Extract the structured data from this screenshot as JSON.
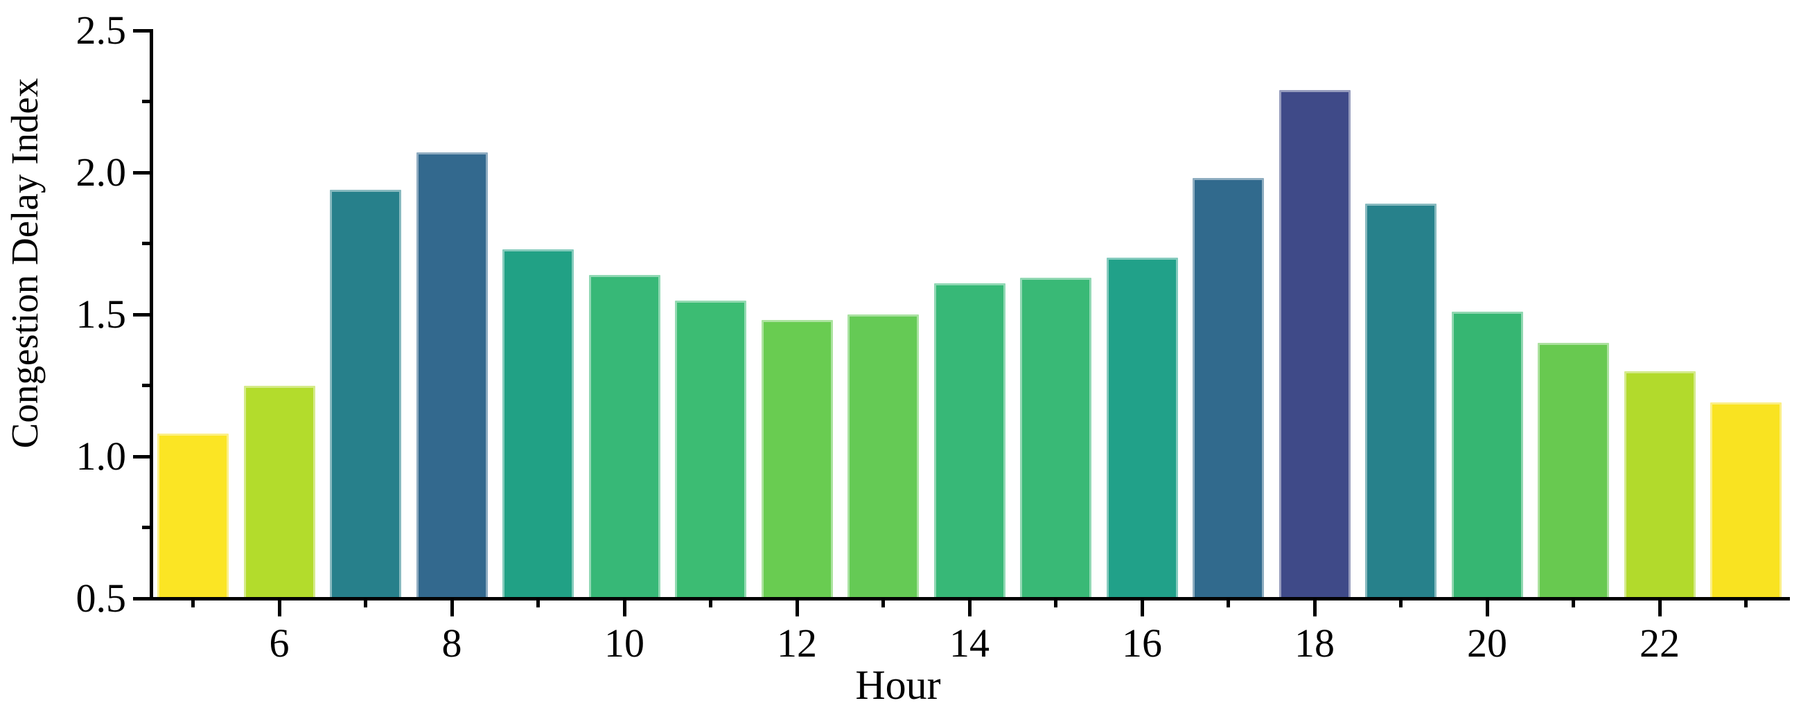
{
  "chart_data": {
    "type": "bar",
    "title": "",
    "xlabel": "Hour",
    "ylabel": "Congestion Delay Index",
    "x": [
      5,
      6,
      7,
      8,
      9,
      10,
      11,
      12,
      13,
      14,
      15,
      16,
      17,
      18,
      19,
      20,
      21,
      22,
      23
    ],
    "values": [
      1.08,
      1.25,
      1.94,
      2.07,
      1.73,
      1.64,
      1.55,
      1.48,
      1.5,
      1.61,
      1.63,
      1.7,
      1.98,
      2.29,
      1.89,
      1.51,
      1.4,
      1.3,
      1.19
    ],
    "bar_colors": [
      "#fbe524",
      "#b3dc2c",
      "#27808b",
      "#33698e",
      "#21a185",
      "#37b877",
      "#3cbc73",
      "#69cc51",
      "#65ca55",
      "#37b877",
      "#39b976",
      "#21a189",
      "#316a8d",
      "#3f4a88",
      "#27818b",
      "#36b672",
      "#68c950",
      "#b2da2c",
      "#f9e321"
    ],
    "ylim": [
      0.5,
      2.5
    ],
    "xlim": [
      4.54,
      23.53
    ],
    "y_major_ticks": [
      0.5,
      1.0,
      1.5,
      2.0,
      2.5
    ],
    "y_major_tick_labels": [
      "0.5",
      "1.0",
      "1.5",
      "2.0",
      "2.5"
    ],
    "y_minor_ticks": [
      0.75,
      1.25,
      1.75,
      2.25
    ],
    "x_major_ticks": [
      6,
      8,
      10,
      12,
      14,
      16,
      18,
      20,
      22
    ],
    "x_major_tick_labels": [
      "6",
      "8",
      "10",
      "12",
      "14",
      "16",
      "18",
      "20",
      "22"
    ],
    "x_minor_ticks": [
      5,
      7,
      9,
      11,
      13,
      15,
      17,
      19,
      21,
      23
    ],
    "grid": false,
    "legend": false,
    "axis_color": "#000000",
    "text_color": "#000000"
  }
}
